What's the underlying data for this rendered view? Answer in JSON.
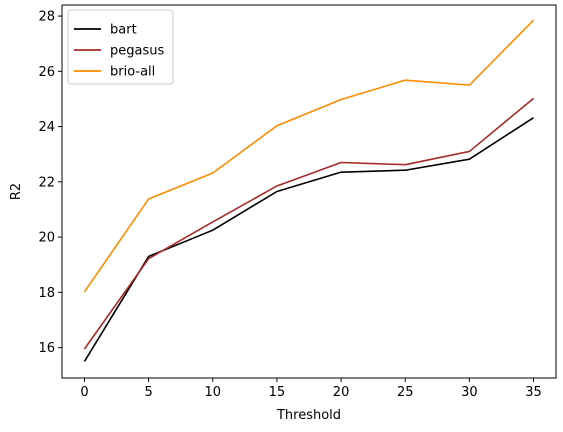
{
  "chart_data": {
    "type": "line",
    "xlabel": "Threshold",
    "ylabel": "R2",
    "x": [
      0,
      5,
      10,
      15,
      20,
      25,
      30,
      35
    ],
    "xticks": [
      0,
      5,
      10,
      15,
      20,
      25,
      30,
      35
    ],
    "yticks": [
      16,
      18,
      20,
      22,
      24,
      26,
      28
    ],
    "xlim": [
      -1.75,
      36.75
    ],
    "ylim": [
      14.9,
      28.4
    ],
    "grid": false,
    "legend_position": "upper-left",
    "series": [
      {
        "name": "bart",
        "color": "#000000",
        "values": [
          15.5,
          19.3,
          20.25,
          21.65,
          22.35,
          22.42,
          22.82,
          24.32
        ]
      },
      {
        "name": "pegasus",
        "color": "#a52a2a",
        "values": [
          15.95,
          19.22,
          20.55,
          21.85,
          22.7,
          22.62,
          23.1,
          25.02
        ]
      },
      {
        "name": "brio-all",
        "color": "#ff8c00",
        "values": [
          18.02,
          21.38,
          22.32,
          24.03,
          24.98,
          25.68,
          25.5,
          27.85
        ]
      }
    ]
  }
}
